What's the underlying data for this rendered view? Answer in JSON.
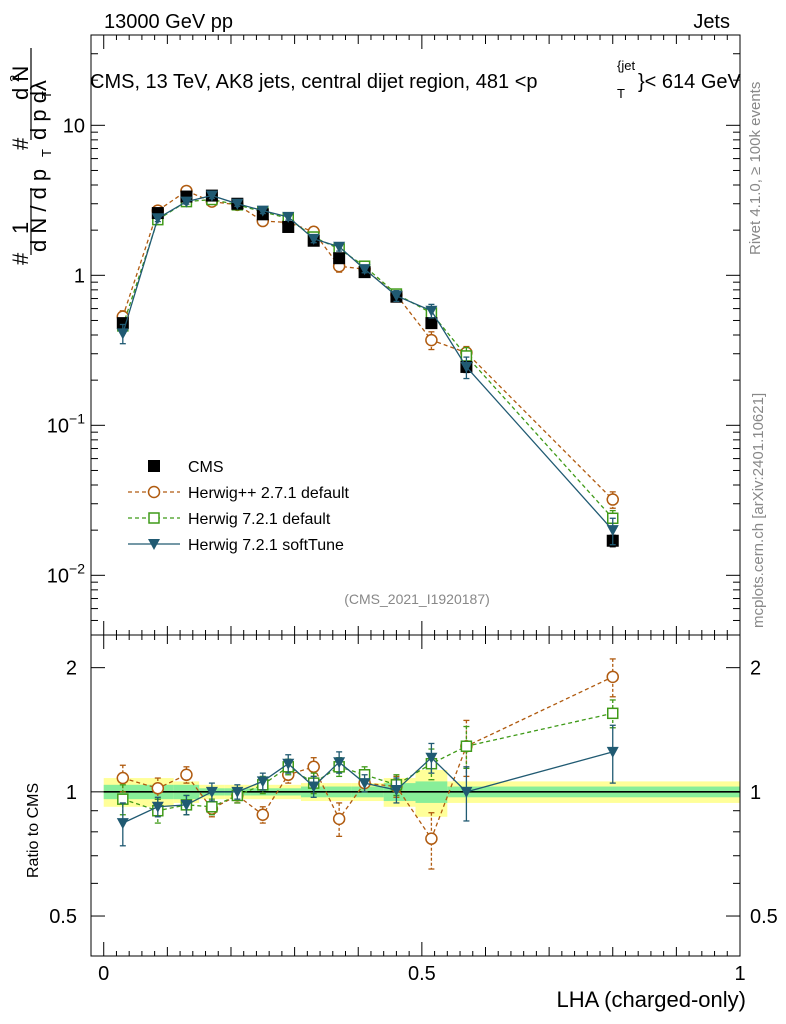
{
  "header": {
    "energy_label": "13000 GeV pp",
    "category_label": "Jets",
    "title": "CMS, 13 TeV, AK8 jets, central dijet region, 481 <p",
    "title_sup": "{jet",
    "title_sub": "T",
    "title_end": "}< 614 GeV"
  },
  "side": {
    "rivet_label": "Rivet 4.1.0, ≥ 100k events",
    "mcplots_label": "mcplots.cern.ch [arXiv:2401.10621]"
  },
  "watermark": "(CMS_2021_I1920187)",
  "chart_data": [
    {
      "type": "line",
      "panel": "main",
      "ylabel": "# 1/dN/dp_T # d²N/dp_T dλ",
      "yscale": "log",
      "ylim": [
        0.004,
        40
      ],
      "xlim": [
        -0.02,
        1.0
      ],
      "yticks": [
        {
          "value": 0.01,
          "label": "10−2",
          "base": "10",
          "exp": "−2"
        },
        {
          "value": 0.1,
          "label": "10−1",
          "base": "10",
          "exp": "−1"
        },
        {
          "value": 1,
          "label": "1"
        },
        {
          "value": 10,
          "label": "10"
        }
      ],
      "x": [
        0.03,
        0.085,
        0.13,
        0.17,
        0.21,
        0.25,
        0.29,
        0.33,
        0.37,
        0.41,
        0.46,
        0.515,
        0.57,
        0.8
      ],
      "series": [
        {
          "name": "CMS",
          "marker": "filled-square",
          "color": "#000000",
          "values": [
            0.48,
            2.6,
            3.35,
            3.4,
            3.0,
            2.55,
            2.1,
            1.7,
            1.3,
            1.05,
            0.72,
            0.48,
            0.245,
            0.017
          ],
          "errors": [
            0.03,
            0.1,
            0.1,
            0.1,
            0.08,
            0.07,
            0.06,
            0.05,
            0.04,
            0.03,
            0.03,
            0.03,
            0.02,
            0.0015
          ]
        },
        {
          "name": "Herwig++ 2.7.1 default",
          "marker": "open-circle",
          "color": "#b05b10",
          "dashed": true,
          "values": [
            0.53,
            2.7,
            3.65,
            3.1,
            2.95,
            2.3,
            2.25,
            1.95,
            1.15,
            1.1,
            0.74,
            0.37,
            0.305,
            0.032
          ],
          "errors": [
            0.05,
            0.12,
            0.15,
            0.12,
            0.12,
            0.12,
            0.1,
            0.1,
            0.1,
            0.05,
            0.05,
            0.05,
            0.03,
            0.004
          ]
        },
        {
          "name": "Herwig 7.2.1 default",
          "marker": "open-square",
          "color": "#3f9a18",
          "dashed": true,
          "values": [
            0.46,
            2.35,
            3.1,
            3.2,
            2.95,
            2.65,
            2.4,
            1.8,
            1.5,
            1.15,
            0.75,
            0.56,
            0.29,
            0.024
          ],
          "errors": [
            0.05,
            0.12,
            0.12,
            0.12,
            0.12,
            0.12,
            0.1,
            0.08,
            0.08,
            0.05,
            0.05,
            0.05,
            0.04,
            0.003
          ]
        },
        {
          "name": "Herwig 7.2.1 softTune",
          "marker": "filled-triangle-down",
          "color": "#205a72",
          "dashed": false,
          "values": [
            0.41,
            2.4,
            3.1,
            3.4,
            3.0,
            2.7,
            2.45,
            1.75,
            1.55,
            1.1,
            0.73,
            0.58,
            0.245,
            0.02
          ],
          "errors": [
            0.06,
            0.12,
            0.12,
            0.15,
            0.12,
            0.12,
            0.12,
            0.1,
            0.1,
            0.06,
            0.06,
            0.06,
            0.04,
            0.004
          ]
        }
      ]
    },
    {
      "type": "line",
      "panel": "ratio",
      "ylabel": "Ratio to CMS",
      "xlabel": "LHA (charged-only)",
      "xlim": [
        -0.02,
        1.0
      ],
      "ylim": [
        0.4,
        2.4
      ],
      "yticks": [
        {
          "value": 0.5,
          "label": "0.5"
        },
        {
          "value": 1,
          "label": "1"
        },
        {
          "value": 2,
          "label": "2"
        }
      ],
      "xticks": [
        {
          "value": 0,
          "label": "0"
        },
        {
          "value": 0.5,
          "label": "0.5"
        },
        {
          "value": 1,
          "label": "1"
        }
      ],
      "band_bins": [
        {
          "x0": 0.0,
          "x1": 0.11,
          "inner": 0.04,
          "outer": 0.08
        },
        {
          "x0": 0.11,
          "x1": 0.15,
          "inner": 0.04,
          "outer": 0.06
        },
        {
          "x0": 0.15,
          "x1": 0.19,
          "inner": 0.02,
          "outer": 0.04
        },
        {
          "x0": 0.19,
          "x1": 0.23,
          "inner": 0.02,
          "outer": 0.04
        },
        {
          "x0": 0.23,
          "x1": 0.27,
          "inner": 0.02,
          "outer": 0.04
        },
        {
          "x0": 0.27,
          "x1": 0.31,
          "inner": 0.02,
          "outer": 0.04
        },
        {
          "x0": 0.31,
          "x1": 0.35,
          "inner": 0.03,
          "outer": 0.05
        },
        {
          "x0": 0.35,
          "x1": 0.39,
          "inner": 0.03,
          "outer": 0.05
        },
        {
          "x0": 0.39,
          "x1": 0.44,
          "inner": 0.03,
          "outer": 0.05
        },
        {
          "x0": 0.44,
          "x1": 0.49,
          "inner": 0.05,
          "outer": 0.08
        },
        {
          "x0": 0.49,
          "x1": 0.54,
          "inner": 0.06,
          "outer": 0.13
        },
        {
          "x0": 0.54,
          "x1": 1.0,
          "inner": 0.03,
          "outer": 0.06
        }
      ],
      "x": [
        0.03,
        0.085,
        0.13,
        0.17,
        0.21,
        0.25,
        0.29,
        0.33,
        0.37,
        0.41,
        0.46,
        0.515,
        0.57,
        0.8
      ],
      "series": [
        {
          "name": "Herwig++ 2.7.1 default",
          "marker": "open-circle",
          "color": "#b05b10",
          "dashed": true,
          "values": [
            1.08,
            1.02,
            1.1,
            0.91,
            0.98,
            0.88,
            1.1,
            1.15,
            0.86,
            1.05,
            1.03,
            0.77,
            1.29,
            1.9
          ],
          "errors": [
            0.08,
            0.06,
            0.05,
            0.04,
            0.04,
            0.04,
            0.05,
            0.06,
            0.08,
            0.05,
            0.06,
            0.12,
            0.2,
            0.2
          ]
        },
        {
          "name": "Herwig 7.2.1 default",
          "marker": "open-square",
          "color": "#3f9a18",
          "dashed": true,
          "values": [
            0.96,
            0.9,
            0.93,
            0.92,
            0.98,
            1.04,
            1.15,
            1.05,
            1.15,
            1.1,
            1.04,
            1.17,
            1.29,
            1.55
          ],
          "errors": [
            0.08,
            0.06,
            0.05,
            0.04,
            0.04,
            0.05,
            0.05,
            0.06,
            0.06,
            0.05,
            0.06,
            0.1,
            0.15,
            0.12
          ]
        },
        {
          "name": "Herwig 7.2.1 softTune",
          "marker": "filled-triangle-down",
          "color": "#205a72",
          "dashed": false,
          "values": [
            0.84,
            0.92,
            0.93,
            1.0,
            1.0,
            1.06,
            1.17,
            1.03,
            1.18,
            1.05,
            1.01,
            1.21,
            1.0,
            1.25
          ],
          "errors": [
            0.1,
            0.05,
            0.05,
            0.05,
            0.04,
            0.05,
            0.06,
            0.06,
            0.07,
            0.05,
            0.07,
            0.1,
            0.15,
            0.2
          ]
        }
      ]
    }
  ]
}
